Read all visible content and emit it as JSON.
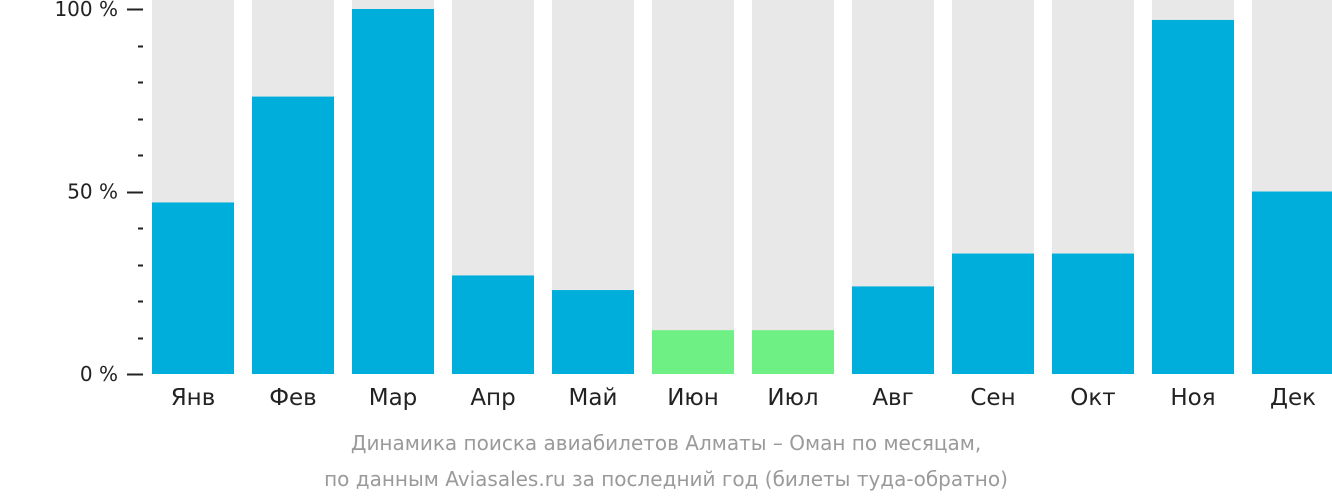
{
  "chart_data": {
    "type": "bar",
    "categories": [
      "Янв",
      "Фев",
      "Мар",
      "Апр",
      "Май",
      "Июн",
      "Июл",
      "Авг",
      "Сен",
      "Окт",
      "Ноя",
      "Дек"
    ],
    "values": [
      47,
      76,
      100,
      27,
      23,
      12,
      12,
      24,
      33,
      33,
      97,
      50
    ],
    "ylim": [
      0,
      100
    ],
    "yticks": [
      {
        "value": 0,
        "label": "0 %"
      },
      {
        "value": 50,
        "label": "50 %"
      },
      {
        "value": 100,
        "label": "100 %"
      }
    ],
    "minor_ticks": [
      10,
      20,
      30,
      40,
      60,
      70,
      80,
      90
    ],
    "highlight_categories": [
      "Июн",
      "Июл"
    ],
    "title": "",
    "xlabel": "",
    "ylabel": "",
    "grid": false,
    "legend": "none"
  },
  "colors": {
    "bar": "#00aedb",
    "bar_highlight": "#6ff084",
    "track": "#e8e8e8",
    "axis_text": "#222222",
    "caption": "#9a9a9a"
  },
  "caption": {
    "line1": "Динамика поиска авиабилетов Алматы – Оман по месяцам,",
    "line2": "по данным Aviasales.ru за последний год (билеты туда-обратно)"
  }
}
